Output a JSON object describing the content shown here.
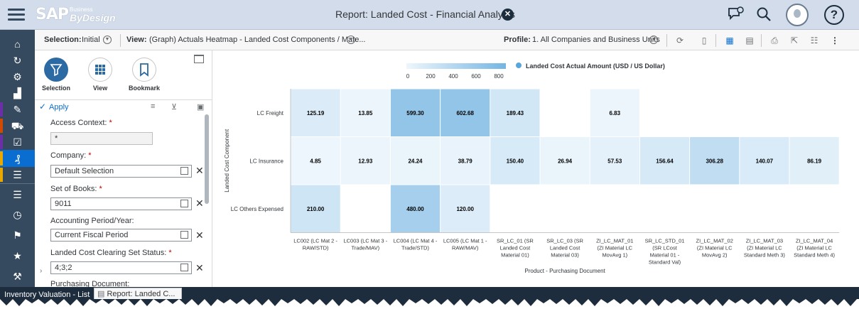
{
  "shell": {
    "logo_sap": "SAP",
    "logo_business": "Business",
    "logo_bydesign": "ByDesign",
    "title": "Report: Landed Cost - Financial Analysis"
  },
  "toolbar": {
    "selection_label": "Selection:",
    "selection_value": "Initial",
    "view_label": "View:",
    "view_value": "(Graph) Actuals Heatmap - Landed Cost Components / Mate...",
    "profile_label": "Profile:",
    "profile_value": "1. All Companies and Business Units"
  },
  "panel": {
    "tabs": [
      {
        "label": "Selection"
      },
      {
        "label": "View"
      },
      {
        "label": "Bookmark"
      }
    ],
    "apply_label": "Apply",
    "fields": [
      {
        "label": "Access Context:",
        "value": "*"
      },
      {
        "label": "Company:",
        "value": "Default Selection"
      },
      {
        "label": "Set of Books:",
        "value": "9011"
      },
      {
        "label": "Accounting Period/Year:",
        "value": "Current Fiscal Period"
      },
      {
        "label": "Landed Cost Clearing Set Status:",
        "value": "4;3;2"
      }
    ],
    "next_label": "Purchasing Document:"
  },
  "chart_data": {
    "type": "heatmap",
    "legend_title": "Landed Cost Actual Amount (USD / US Dollar)",
    "color_scale": {
      "min": 0,
      "max": 800,
      "ticks": [
        "0",
        "200",
        "400",
        "600",
        "800"
      ],
      "low_color": "#eef6fc",
      "high_color": "#75b5e3"
    },
    "ylabel": "Landed Cost Component",
    "xlabel": "Product - Purchasing Document",
    "rows": [
      "LC Freight",
      "LC Insurance",
      "LC Others Expensed"
    ],
    "columns": [
      [
        "LC002 (LC Mat 2 -",
        "RAW/STD)"
      ],
      [
        "LC003 (LC Mat 3 -",
        "Trade/MAV)"
      ],
      [
        "LC004 (LC Mat 4 -",
        "Trade/STD)"
      ],
      [
        "LC005 (LC Mat 1 -",
        "RAW/MAV)"
      ],
      [
        "SR_LC_01 (SR",
        "Landed Cost",
        "Material 01)"
      ],
      [
        "SR_LC_03 (SR",
        "Landed Cost",
        "Material 03)"
      ],
      [
        "ZI_LC_MAT_01",
        "(ZI Material LC",
        "MovAvg 1)"
      ],
      [
        "SR_LC_STD_01",
        "(SR LCost",
        "Material 01 -",
        "Standard Val)"
      ],
      [
        "ZI_LC_MAT_02",
        "(ZI Material LC",
        "MovAvg 2)"
      ],
      [
        "ZI_LC_MAT_03",
        "(ZI Material LC",
        "Standard Meth 3)"
      ],
      [
        "ZI_LC_MAT_04",
        "(ZI Material LC",
        "Standard Meth 4)"
      ]
    ],
    "values": [
      [
        125.19,
        13.85,
        599.3,
        602.68,
        189.43,
        null,
        6.83,
        null,
        null,
        null,
        null
      ],
      [
        4.85,
        12.93,
        24.24,
        38.79,
        150.4,
        26.94,
        57.53,
        156.64,
        306.28,
        140.07,
        86.19
      ],
      [
        210.0,
        null,
        480.0,
        120.0,
        null,
        null,
        null,
        null,
        null,
        null,
        null
      ]
    ],
    "labels": [
      [
        "125.19",
        "13.85",
        "599.30",
        "602.68",
        "189.43",
        "",
        "6.83",
        "",
        "",
        "",
        ""
      ],
      [
        "4.85",
        "12.93",
        "24.24",
        "38.79",
        "150.40",
        "26.94",
        "57.53",
        "156.64",
        "306.28",
        "140.07",
        "86.19"
      ],
      [
        "210.00",
        "",
        "480.00",
        "120.00",
        "",
        "",
        "",
        "",
        "",
        "",
        ""
      ]
    ]
  },
  "taskbar": {
    "tab1": "Inventory Valuation - List",
    "tab2": "Report: Landed C..."
  }
}
